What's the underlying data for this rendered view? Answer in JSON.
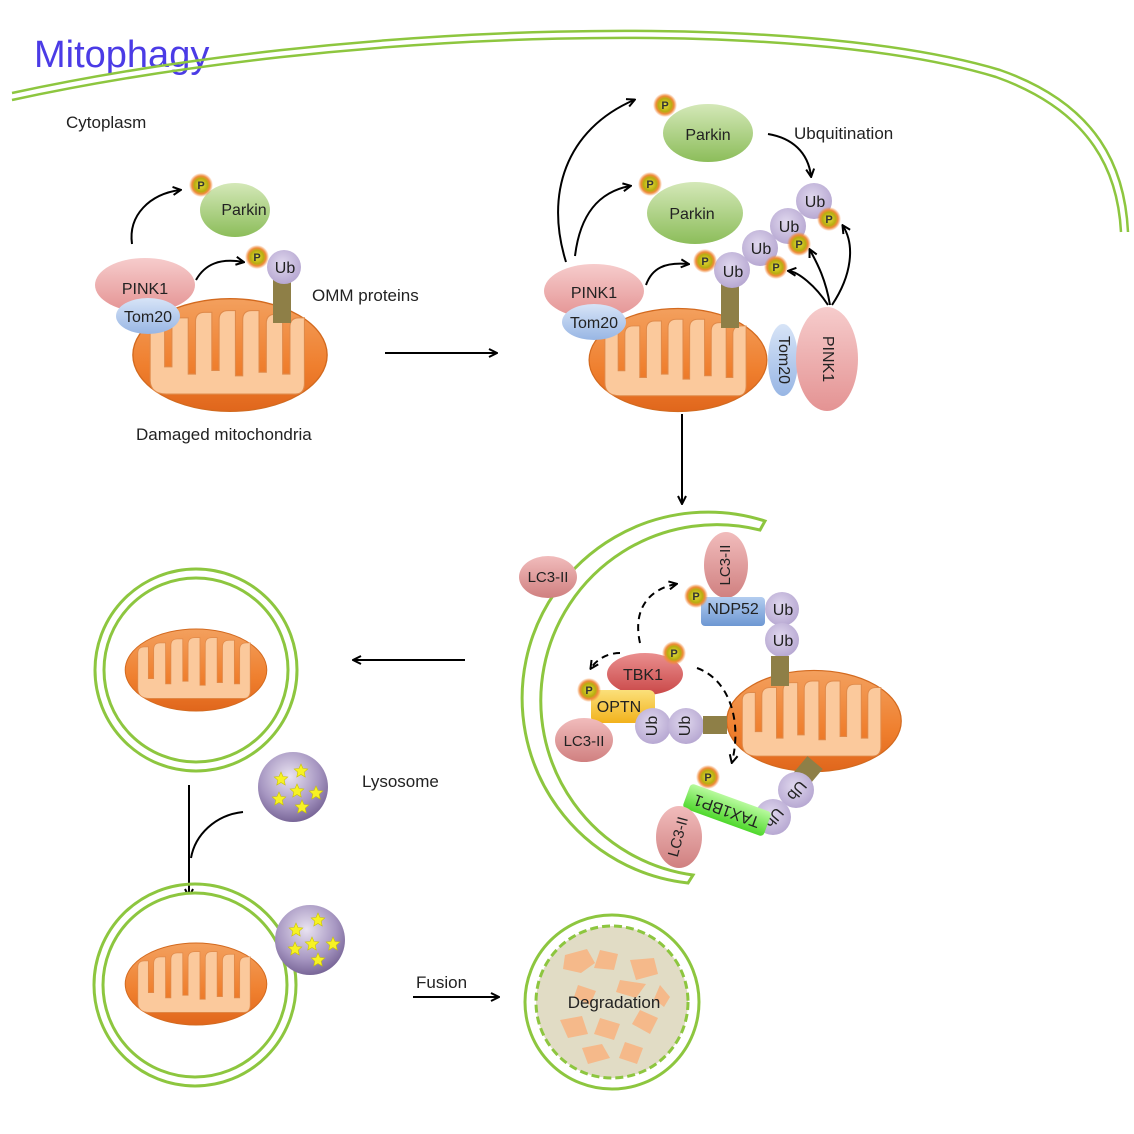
{
  "title": "Mitophagy",
  "labels": {
    "cytoplasm": "Cytoplasm",
    "omm_proteins": "OMM proteins",
    "damaged_mitochondria": "Damaged mitochondria",
    "ubiquitination": "Ubquitination",
    "lysosome": "Lysosome",
    "fusion": "Fusion",
    "degradation": "Degradation"
  },
  "proteins": {
    "pink1": "PINK1",
    "tom20": "Tom20",
    "parkin": "Parkin",
    "ub": "Ub",
    "p": "P",
    "lc3": "LC3-II",
    "ndp52": "NDP52",
    "tbk1": "TBK1",
    "optn": "OPTN",
    "tax1bp1": "TAX1BP1"
  },
  "colors": {
    "title": "#4b3be6",
    "membrane": "#8dc63f",
    "mito_fill": "#f28a3a",
    "parkin": "#a6cc7a",
    "pink1": "#e9a3a3",
    "tom20": "#a9c4ea",
    "ub": "#c5b8dc",
    "phospho": "#c9c218",
    "lc3": "#d98c8c",
    "ndp52": "#7fa7dc",
    "tbk1": "#d45a5a",
    "optn": "#f6c129",
    "tax1bp1": "#6cf04a",
    "lysosome": "#9a86b7",
    "stalk": "#8e7f47"
  }
}
